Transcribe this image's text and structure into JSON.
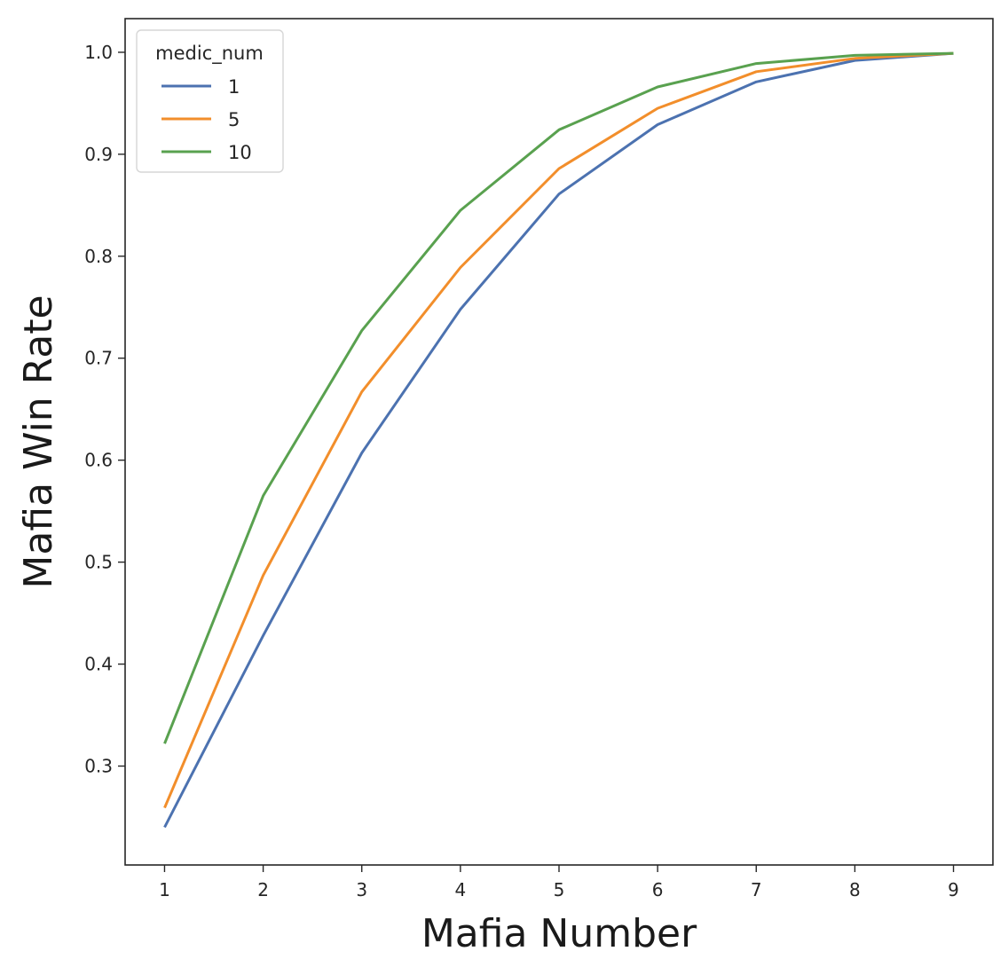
{
  "chart_data": {
    "type": "line",
    "title": "",
    "xlabel": "Mafia Number",
    "ylabel": "Mafia Win Rate",
    "x": [
      1,
      2,
      3,
      4,
      5,
      6,
      7,
      8,
      9
    ],
    "xlim": [
      0.6,
      9.4
    ],
    "ylim": [
      0.203,
      1.033
    ],
    "xticks": [
      "1",
      "2",
      "3",
      "4",
      "5",
      "6",
      "7",
      "8",
      "9"
    ],
    "yticks": [
      "0.3",
      "0.4",
      "0.5",
      "0.6",
      "0.7",
      "0.8",
      "0.9",
      "1.0"
    ],
    "grid": false,
    "legend": {
      "title": "medic_num",
      "position": "top-left"
    },
    "series": [
      {
        "name": "1",
        "color": "#4c72b0",
        "values": [
          0.24,
          0.428,
          0.607,
          0.748,
          0.861,
          0.929,
          0.971,
          0.992,
          0.999
        ]
      },
      {
        "name": "5",
        "color": "#f28e2b",
        "values": [
          0.259,
          0.487,
          0.667,
          0.789,
          0.886,
          0.945,
          0.981,
          0.994,
          0.999
        ]
      },
      {
        "name": "10",
        "color": "#59a14f",
        "values": [
          0.322,
          0.565,
          0.727,
          0.845,
          0.924,
          0.966,
          0.989,
          0.997,
          0.999
        ]
      }
    ]
  }
}
